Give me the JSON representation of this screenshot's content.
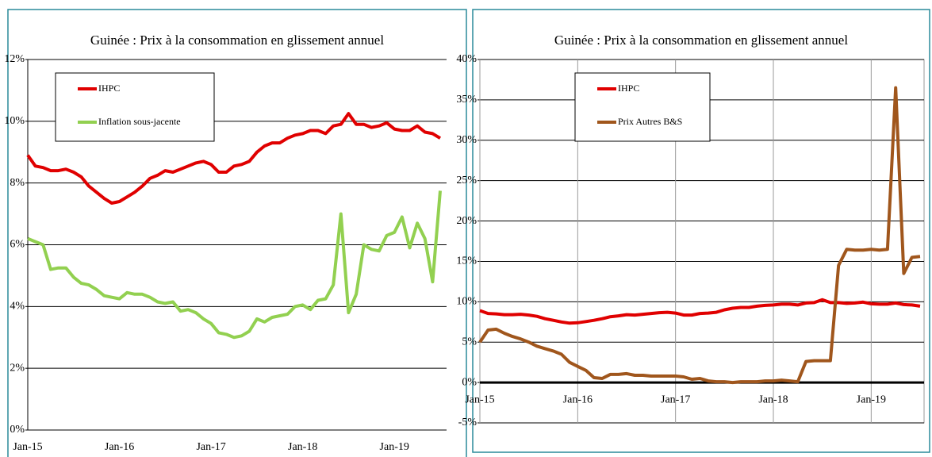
{
  "chart_data": [
    {
      "type": "line",
      "title": "Guinée : Prix à la consommation en glissement annuel",
      "categories": [
        "Jan-15",
        null,
        null,
        null,
        null,
        null,
        null,
        null,
        null,
        null,
        null,
        null,
        "Jan-16",
        null,
        null,
        null,
        null,
        null,
        null,
        null,
        null,
        null,
        null,
        null,
        "Jan-17",
        null,
        null,
        null,
        null,
        null,
        null,
        null,
        null,
        null,
        null,
        null,
        "Jan-18",
        null,
        null,
        null,
        null,
        null,
        null,
        null,
        null,
        null,
        null,
        null,
        "Jan-19",
        null,
        null,
        null,
        null,
        null,
        null
      ],
      "series": [
        {
          "name": "IHPC",
          "color": "#e00000",
          "values": [
            8.9,
            8.55,
            8.5,
            8.4,
            8.4,
            8.45,
            8.35,
            8.2,
            7.9,
            7.7,
            7.5,
            7.35,
            7.4,
            7.55,
            7.7,
            7.9,
            8.15,
            8.25,
            8.4,
            8.35,
            8.45,
            8.55,
            8.65,
            8.7,
            8.6,
            8.35,
            8.35,
            8.55,
            8.6,
            8.7,
            9.0,
            9.2,
            9.3,
            9.3,
            9.45,
            9.55,
            9.6,
            9.7,
            9.7,
            9.6,
            9.85,
            9.9,
            10.25,
            9.9,
            9.9,
            9.8,
            9.85,
            9.95,
            9.75,
            9.7,
            9.7,
            9.85,
            9.65,
            9.6,
            9.45
          ]
        },
        {
          "name": "Inflation sous-jacente",
          "color": "#92d050",
          "values": [
            6.2,
            6.1,
            6.0,
            5.2,
            5.25,
            5.25,
            4.95,
            4.75,
            4.7,
            4.55,
            4.35,
            4.3,
            4.25,
            4.45,
            4.4,
            4.4,
            4.3,
            4.15,
            4.1,
            4.15,
            3.85,
            3.9,
            3.8,
            3.6,
            3.45,
            3.15,
            3.1,
            3.0,
            3.05,
            3.2,
            3.6,
            3.5,
            3.65,
            3.7,
            3.75,
            4.0,
            4.05,
            3.9,
            4.2,
            4.25,
            4.7,
            7.0,
            3.8,
            4.4,
            6.0,
            5.85,
            5.8,
            6.3,
            6.4,
            6.9,
            5.9,
            6.7,
            6.2,
            4.8,
            7.75
          ]
        }
      ],
      "ylim": [
        0,
        12
      ],
      "yticks": [
        {
          "value": 0,
          "label": "0%"
        },
        {
          "value": 2,
          "label": "2%"
        },
        {
          "value": 4,
          "label": "4%"
        },
        {
          "value": 6,
          "label": "6%"
        },
        {
          "value": 8,
          "label": "8%"
        },
        {
          "value": 10,
          "label": "10%"
        },
        {
          "value": 12,
          "label": "12%"
        }
      ],
      "ygrid": true,
      "xgrid": false,
      "legend": "upper left"
    },
    {
      "type": "line",
      "title": "Guinée : Prix à la consommation en glissement annuel",
      "categories": [
        "Jan-15",
        null,
        null,
        null,
        null,
        null,
        null,
        null,
        null,
        null,
        null,
        null,
        "Jan-16",
        null,
        null,
        null,
        null,
        null,
        null,
        null,
        null,
        null,
        null,
        null,
        "Jan-17",
        null,
        null,
        null,
        null,
        null,
        null,
        null,
        null,
        null,
        null,
        null,
        "Jan-18",
        null,
        null,
        null,
        null,
        null,
        null,
        null,
        null,
        null,
        null,
        null,
        "Jan-19",
        null,
        null,
        null,
        null,
        null,
        null
      ],
      "series": [
        {
          "name": "IHPC",
          "color": "#e00000",
          "values": [
            8.9,
            8.55,
            8.5,
            8.4,
            8.4,
            8.45,
            8.35,
            8.2,
            7.9,
            7.7,
            7.5,
            7.35,
            7.4,
            7.55,
            7.7,
            7.9,
            8.15,
            8.25,
            8.4,
            8.35,
            8.45,
            8.55,
            8.65,
            8.7,
            8.6,
            8.35,
            8.35,
            8.55,
            8.6,
            8.7,
            9.0,
            9.2,
            9.3,
            9.3,
            9.45,
            9.55,
            9.6,
            9.7,
            9.7,
            9.6,
            9.85,
            9.9,
            10.25,
            9.9,
            9.9,
            9.8,
            9.85,
            9.95,
            9.75,
            9.7,
            9.7,
            9.85,
            9.65,
            9.6,
            9.45
          ]
        },
        {
          "name": "Prix Autres B&S",
          "color": "#a0561c",
          "values": [
            5.0,
            6.5,
            6.6,
            6.1,
            5.7,
            5.4,
            5.0,
            4.5,
            4.2,
            3.9,
            3.5,
            2.5,
            2.0,
            1.5,
            0.6,
            0.5,
            1.0,
            1.0,
            1.1,
            0.9,
            0.9,
            0.8,
            0.8,
            0.8,
            0.8,
            0.7,
            0.4,
            0.5,
            0.2,
            0.1,
            0.1,
            0.0,
            0.1,
            0.1,
            0.1,
            0.2,
            0.2,
            0.3,
            0.2,
            0.1,
            2.6,
            2.7,
            2.7,
            2.7,
            14.5,
            16.5,
            16.4,
            16.4,
            16.5,
            16.4,
            16.5,
            36.5,
            13.5,
            15.5,
            15.6
          ]
        }
      ],
      "ylim": [
        -5,
        40
      ],
      "yticks": [
        {
          "value": -5,
          "label": "-5%"
        },
        {
          "value": 0,
          "label": "0%"
        },
        {
          "value": 5,
          "label": "5%"
        },
        {
          "value": 10,
          "label": "10%"
        },
        {
          "value": 15,
          "label": "15%"
        },
        {
          "value": 20,
          "label": "20%"
        },
        {
          "value": 25,
          "label": "25%"
        },
        {
          "value": 30,
          "label": "30%"
        },
        {
          "value": 35,
          "label": "35%"
        },
        {
          "value": 40,
          "label": "40%"
        }
      ],
      "ygrid": true,
      "xgrid": true,
      "legend": "upper left"
    }
  ]
}
